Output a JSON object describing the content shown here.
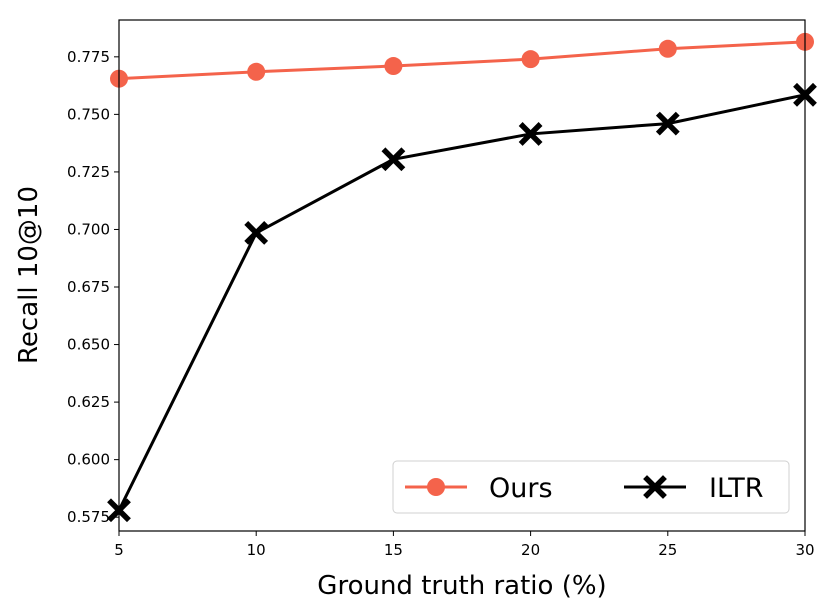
{
  "chart_data": {
    "type": "line",
    "title": "",
    "xlabel": "Ground truth ratio (%)",
    "ylabel": "Recall 10@10",
    "x": [
      5,
      10,
      15,
      20,
      25,
      30
    ],
    "xlim": [
      5,
      30
    ],
    "ylim": [
      0.569,
      0.791
    ],
    "xticks": [
      5,
      10,
      15,
      20,
      25,
      30
    ],
    "yticks": [
      0.575,
      0.6,
      0.625,
      0.65,
      0.675,
      0.7,
      0.725,
      0.75,
      0.775
    ],
    "ytick_labels": [
      "0.575",
      "0.600",
      "0.625",
      "0.650",
      "0.675",
      "0.700",
      "0.725",
      "0.750",
      "0.775"
    ],
    "grid": false,
    "legend_position": "lower-right",
    "series": [
      {
        "name": "Ours",
        "values": [
          0.7655,
          0.7685,
          0.771,
          0.774,
          0.7785,
          0.7815
        ],
        "color": "#f4634b",
        "marker": "circle"
      },
      {
        "name": "ILTR",
        "values": [
          0.578,
          0.6985,
          0.7305,
          0.7415,
          0.746,
          0.7585
        ],
        "color": "#000000",
        "marker": "x"
      }
    ]
  }
}
